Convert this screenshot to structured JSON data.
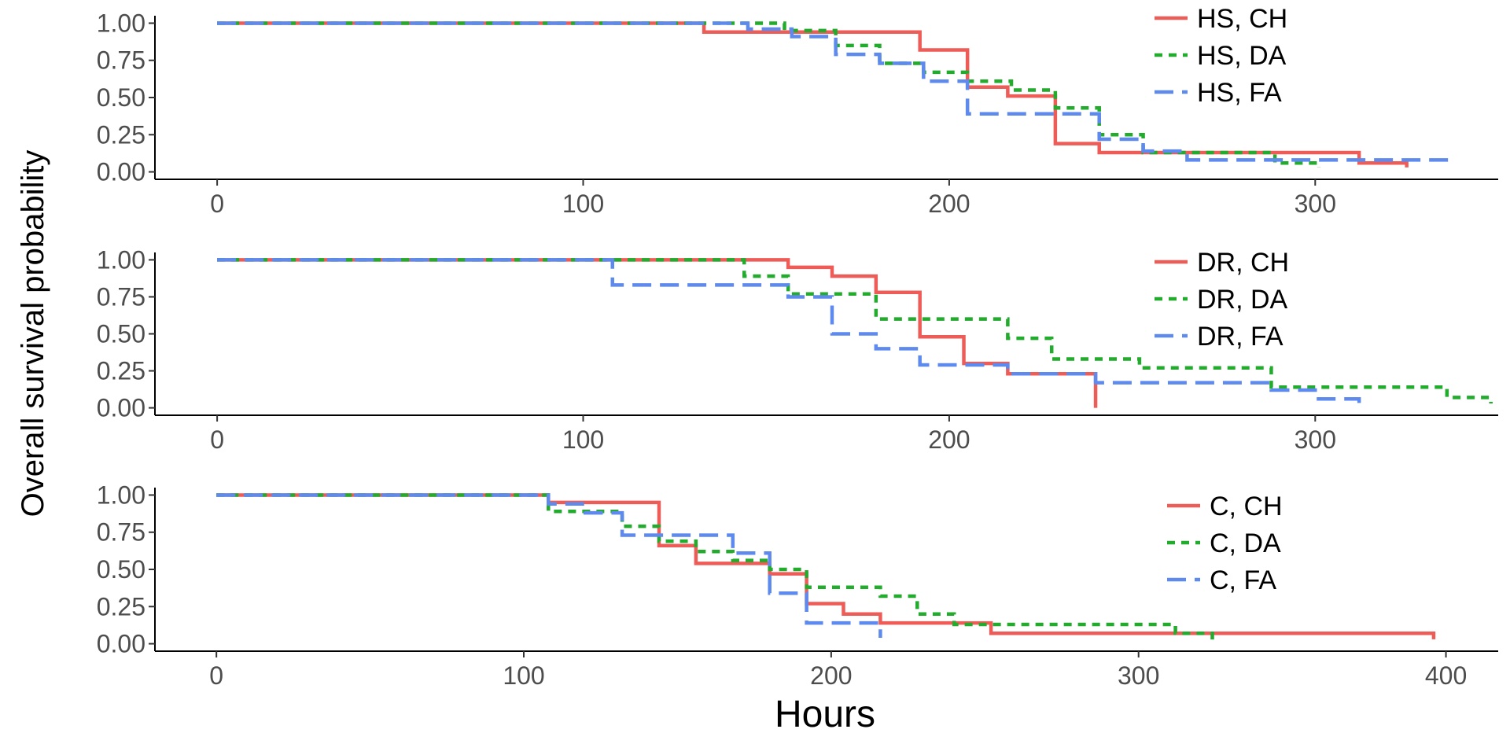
{
  "chart_data": {
    "type": "line",
    "step": true,
    "ylabel": "Overall survival probability",
    "xlabel": "Hours",
    "yticks": [
      0,
      0.25,
      0.5,
      0.75,
      1.0
    ],
    "ytick_labels": [
      "0.00",
      "0.25",
      "0.50",
      "0.75",
      "1.00"
    ],
    "grid": false,
    "legend_position": "top-right",
    "colors": {
      "CH": "#ee5c58",
      "DA": "#22ab2c",
      "FA": "#5e8aee"
    },
    "panels": [
      {
        "xlim": [
          -17,
          350
        ],
        "ylim": [
          -0.05,
          1.05
        ],
        "xticks": [
          0,
          100,
          200,
          300
        ],
        "xtick_labels": [
          "0",
          "100",
          "200",
          "300"
        ],
        "series": [
          {
            "name": "HS, CH",
            "group": "CH",
            "points": [
              [
                0,
                1.0
              ],
              [
                133,
                0.94
              ],
              [
                192,
                0.82
              ],
              [
                205,
                0.57
              ],
              [
                216,
                0.51
              ],
              [
                229,
                0.19
              ],
              [
                241,
                0.13
              ],
              [
                312,
                0.06
              ],
              [
                325,
                0.03
              ]
            ]
          },
          {
            "name": "HS, DA",
            "group": "DA",
            "points": [
              [
                0,
                1.0
              ],
              [
                155,
                0.95
              ],
              [
                169,
                0.85
              ],
              [
                181,
                0.73
              ],
              [
                193,
                0.67
              ],
              [
                205,
                0.61
              ],
              [
                217,
                0.55
              ],
              [
                229,
                0.43
              ],
              [
                241,
                0.25
              ],
              [
                253,
                0.13
              ],
              [
                289,
                0.06
              ],
              [
                301,
                0.03
              ]
            ]
          },
          {
            "name": "HS, FA",
            "group": "FA",
            "points": [
              [
                0,
                1.0
              ],
              [
                145,
                0.96
              ],
              [
                157,
                0.91
              ],
              [
                169,
                0.79
              ],
              [
                181,
                0.73
              ],
              [
                193,
                0.61
              ],
              [
                205,
                0.39
              ],
              [
                241,
                0.22
              ],
              [
                253,
                0.14
              ],
              [
                265,
                0.08
              ],
              [
                338,
                0.08
              ]
            ]
          }
        ]
      },
      {
        "xlim": [
          -17,
          350
        ],
        "ylim": [
          -0.05,
          1.05
        ],
        "xticks": [
          0,
          100,
          200,
          300
        ],
        "xtick_labels": [
          "0",
          "100",
          "200",
          "300"
        ],
        "series": [
          {
            "name": "DR, CH",
            "group": "CH",
            "points": [
              [
                0,
                1.0
              ],
              [
                156,
                0.95
              ],
              [
                168,
                0.89
              ],
              [
                180,
                0.78
              ],
              [
                192,
                0.48
              ],
              [
                204,
                0.3
              ],
              [
                216,
                0.23
              ],
              [
                240,
                0.0
              ]
            ]
          },
          {
            "name": "DR, DA",
            "group": "DA",
            "points": [
              [
                0,
                1.0
              ],
              [
                144,
                0.89
              ],
              [
                156,
                0.77
              ],
              [
                180,
                0.6
              ],
              [
                216,
                0.47
              ],
              [
                228,
                0.33
              ],
              [
                252,
                0.27
              ],
              [
                288,
                0.14
              ],
              [
                336,
                0.07
              ],
              [
                348,
                0.03
              ]
            ]
          },
          {
            "name": "DR, FA",
            "group": "FA",
            "points": [
              [
                0,
                1.0
              ],
              [
                108,
                0.83
              ],
              [
                156,
                0.75
              ],
              [
                168,
                0.5
              ],
              [
                180,
                0.4
              ],
              [
                192,
                0.29
              ],
              [
                216,
                0.23
              ],
              [
                240,
                0.17
              ],
              [
                288,
                0.12
              ],
              [
                300,
                0.06
              ],
              [
                312,
                0.03
              ]
            ]
          }
        ]
      },
      {
        "xlim": [
          -20,
          417
        ],
        "ylim": [
          -0.05,
          1.05
        ],
        "xticks": [
          0,
          100,
          200,
          300,
          400
        ],
        "xtick_labels": [
          "0",
          "100",
          "200",
          "300",
          "400"
        ],
        "series": [
          {
            "name": "C, CH",
            "group": "CH",
            "points": [
              [
                0,
                1.0
              ],
              [
                108,
                0.95
              ],
              [
                144,
                0.66
              ],
              [
                156,
                0.54
              ],
              [
                180,
                0.47
              ],
              [
                192,
                0.27
              ],
              [
                204,
                0.2
              ],
              [
                216,
                0.14
              ],
              [
                252,
                0.07
              ],
              [
                396,
                0.03
              ]
            ]
          },
          {
            "name": "C, DA",
            "group": "DA",
            "points": [
              [
                0,
                1.0
              ],
              [
                108,
                0.89
              ],
              [
                132,
                0.79
              ],
              [
                144,
                0.69
              ],
              [
                156,
                0.62
              ],
              [
                168,
                0.56
              ],
              [
                180,
                0.5
              ],
              [
                192,
                0.38
              ],
              [
                216,
                0.32
              ],
              [
                228,
                0.2
              ],
              [
                240,
                0.13
              ],
              [
                312,
                0.07
              ],
              [
                324,
                0.02
              ]
            ]
          },
          {
            "name": "C, FA",
            "group": "FA",
            "points": [
              [
                0,
                1.0
              ],
              [
                108,
                0.94
              ],
              [
                120,
                0.88
              ],
              [
                132,
                0.73
              ],
              [
                168,
                0.61
              ],
              [
                180,
                0.34
              ],
              [
                192,
                0.14
              ],
              [
                216,
                0.04
              ]
            ]
          }
        ]
      }
    ]
  }
}
